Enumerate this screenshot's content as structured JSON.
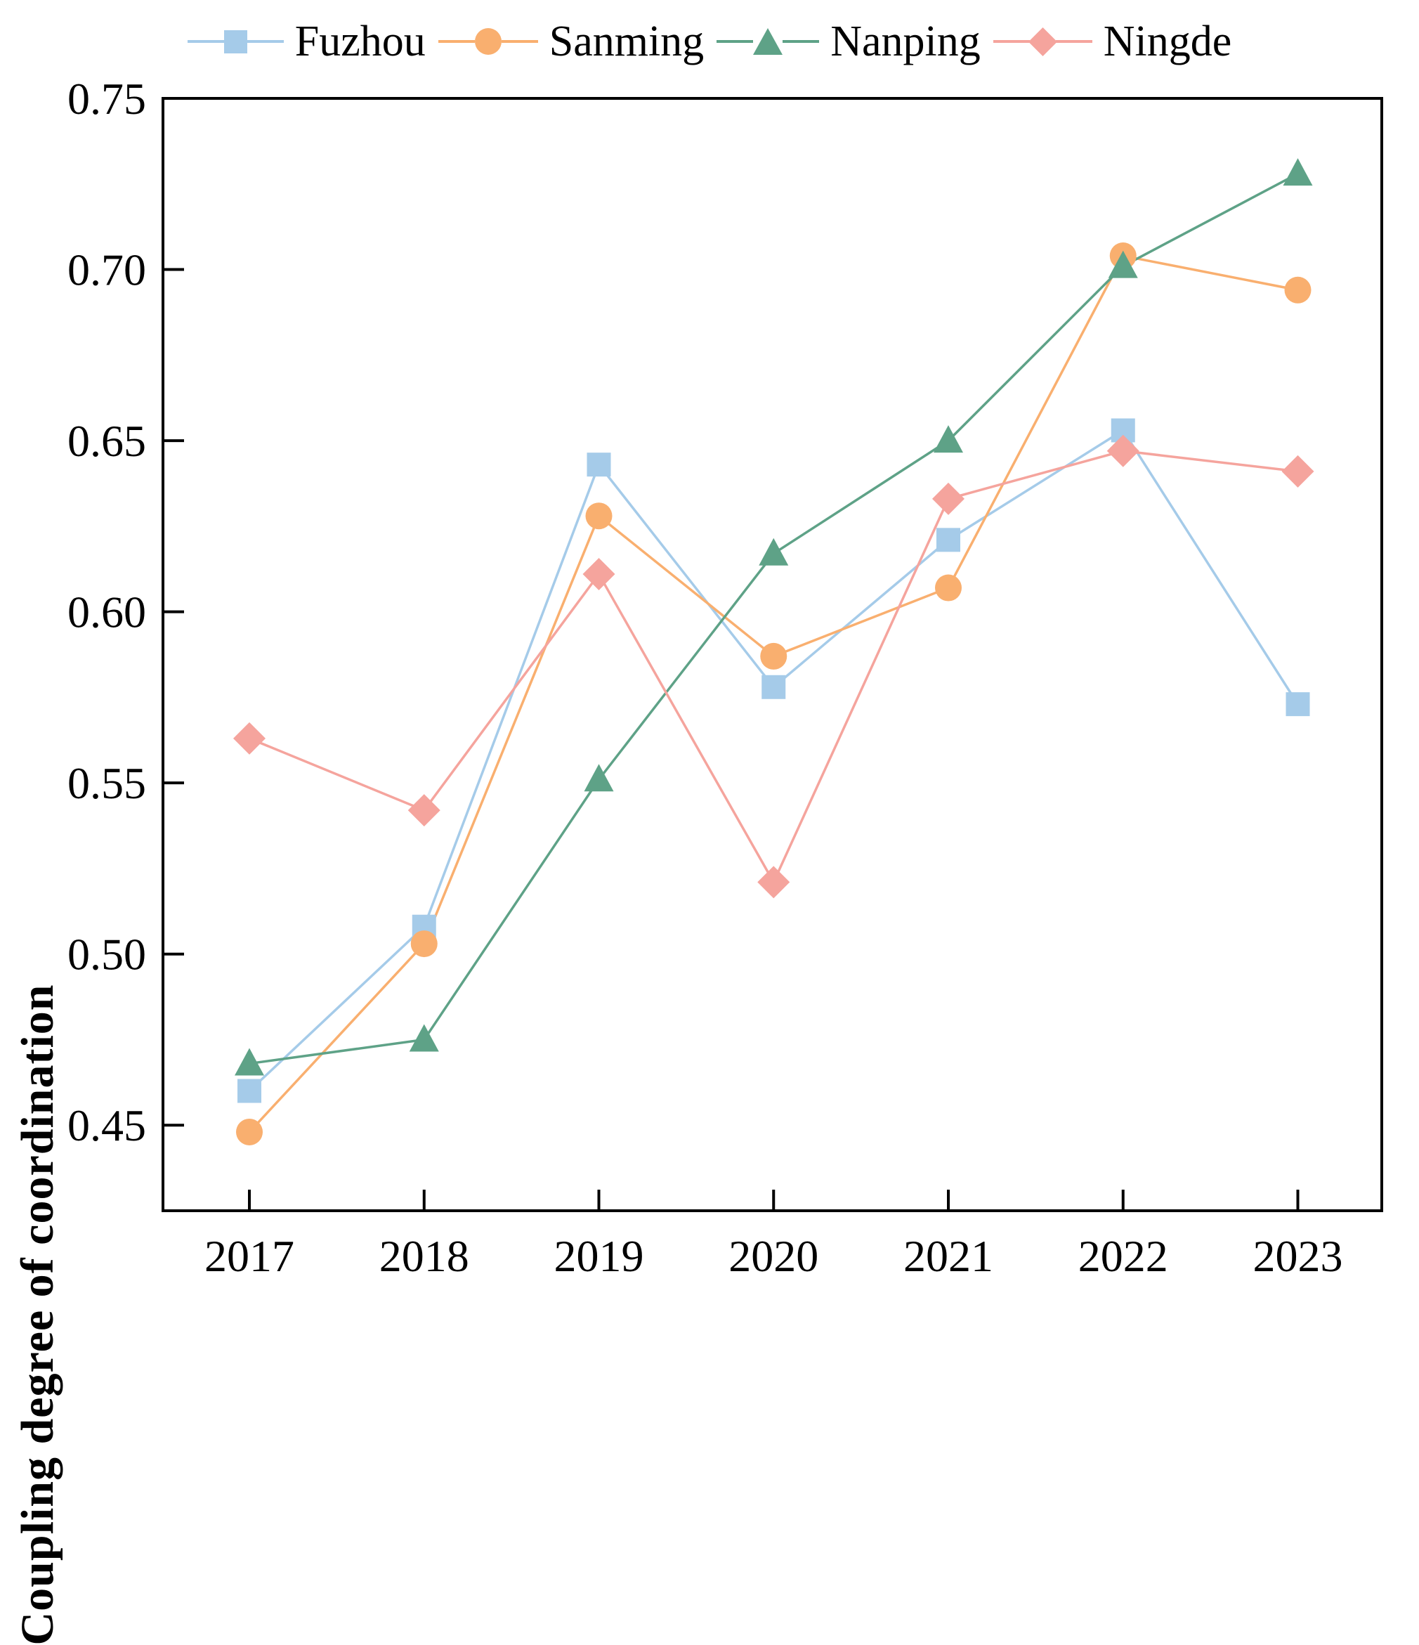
{
  "figure": {
    "background": "#ffffff",
    "axis_color": "#000000"
  },
  "chart_data": {
    "type": "line",
    "title": "",
    "xlabel": "",
    "ylabel": "Coupling degree of coordination",
    "x": [
      "2017",
      "2018",
      "2019",
      "2020",
      "2021",
      "2022",
      "2023"
    ],
    "ylim": [
      0.425,
      0.75
    ],
    "yticks": [
      0.45,
      0.5,
      0.55,
      0.6,
      0.65,
      0.7,
      0.75
    ],
    "ytick_labels": [
      "0.45",
      "0.50",
      "0.55",
      "0.60",
      "0.65",
      "0.70",
      "0.75"
    ],
    "grid": "off",
    "legend_position": "top",
    "axis_color": "#000000",
    "series": [
      {
        "name": "Fuzhou",
        "marker": "square",
        "color": "#A5CBE9",
        "values": [
          0.46,
          0.508,
          0.643,
          0.578,
          0.621,
          0.653,
          0.573
        ]
      },
      {
        "name": "Sanming",
        "marker": "circle",
        "color": "#F9AF6F",
        "values": [
          0.448,
          0.503,
          0.628,
          0.587,
          0.607,
          0.704,
          0.694
        ]
      },
      {
        "name": "Nanping",
        "marker": "triangle",
        "color": "#5EA287",
        "values": [
          0.468,
          0.475,
          0.551,
          0.617,
          0.65,
          0.701,
          0.728
        ]
      },
      {
        "name": "Ningde",
        "marker": "diamond",
        "color": "#F5A49D",
        "values": [
          0.563,
          0.542,
          0.611,
          0.521,
          0.633,
          0.647,
          0.641
        ]
      }
    ]
  }
}
